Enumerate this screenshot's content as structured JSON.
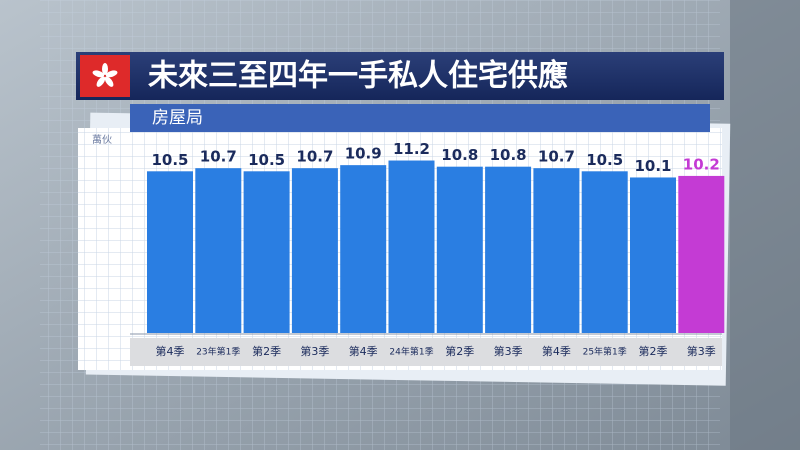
{
  "chart_data": {
    "type": "bar",
    "title": "未來三至四年一手私人住宅供應",
    "subtitle": "房屋局",
    "unit_label": "萬伙",
    "categories": [
      "第4季",
      "23年第1季",
      "第2季",
      "第3季",
      "第4季",
      "24年第1季",
      "第2季",
      "第3季",
      "第4季",
      "25年第1季",
      "第2季",
      "第3季"
    ],
    "values": [
      10.5,
      10.7,
      10.5,
      10.7,
      10.9,
      11.2,
      10.8,
      10.8,
      10.7,
      10.5,
      10.1,
      10.2
    ],
    "colors": [
      "#2a7ee2",
      "#2a7ee2",
      "#2a7ee2",
      "#2a7ee2",
      "#2a7ee2",
      "#2a7ee2",
      "#2a7ee2",
      "#2a7ee2",
      "#2a7ee2",
      "#2a7ee2",
      "#2a7ee2",
      "#c43bd4"
    ],
    "label_color": "#1b2b5c"
  }
}
